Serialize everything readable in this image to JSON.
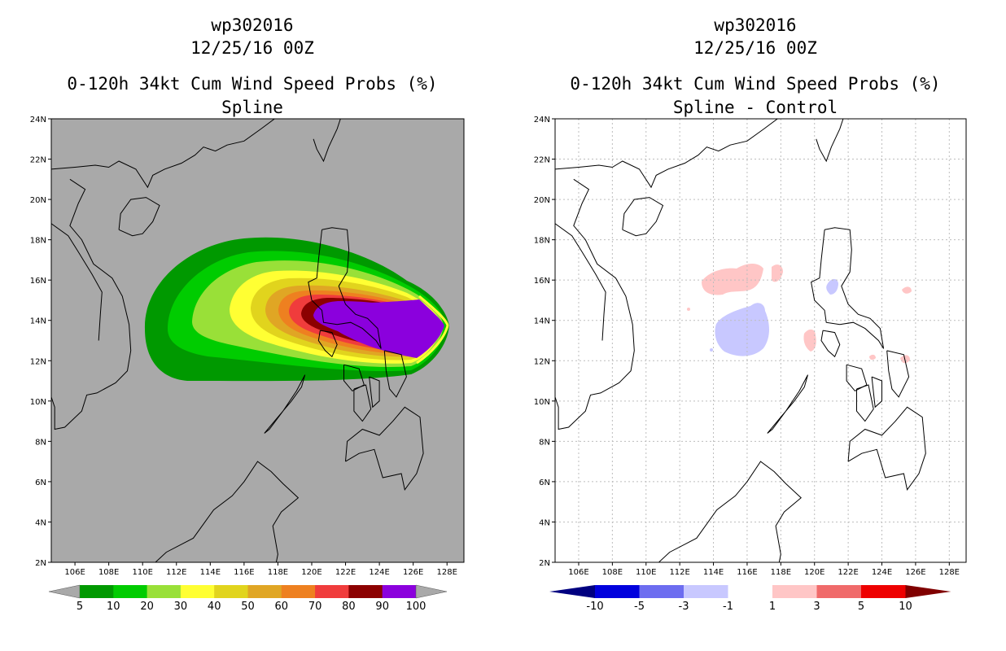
{
  "left_panel": {
    "storm_id": "wp302016",
    "datetime": "12/25/16 00Z",
    "product": "0-120h 34kt Cum Wind Speed Probs (%)",
    "method": "Spline",
    "background_color": "#a9a9a9",
    "colorbar": {
      "labels": [
        "5",
        "10",
        "20",
        "30",
        "40",
        "50",
        "60",
        "70",
        "80",
        "90",
        "100"
      ],
      "colors": [
        "#009900",
        "#00cc00",
        "#99e038",
        "#ffff33",
        "#e1d41d",
        "#e0a624",
        "#ee8020",
        "#f03c3c",
        "#8c0000",
        "#8b00dd"
      ],
      "extend_color": "#a9a9a9"
    }
  },
  "right_panel": {
    "storm_id": "wp302016",
    "datetime": "12/25/16 00Z",
    "product": "0-120h 34kt Cum Wind Speed Probs (%)",
    "method": "Spline - Control",
    "background_color": "#ffffff",
    "colorbar": {
      "labels": [
        "-10",
        "-5",
        "-3",
        "-1",
        "1",
        "3",
        "5",
        "10"
      ],
      "colors": [
        "#0000dd",
        "#6d6df0",
        "#c8c8ff",
        "#ffffff",
        "#ffc6c6",
        "#f06a6a",
        "#ee0000"
      ],
      "left_extend": "#000080",
      "right_extend": "#800000"
    }
  },
  "axes": {
    "lon_labels": [
      "106E",
      "108E",
      "110E",
      "112E",
      "114E",
      "116E",
      "118E",
      "120E",
      "122E",
      "124E",
      "126E",
      "128E"
    ],
    "lat_labels": [
      "2N",
      "4N",
      "6N",
      "8N",
      "10N",
      "12N",
      "14N",
      "16N",
      "18N",
      "20N",
      "22N",
      "24N"
    ],
    "lon_range": [
      104.6,
      129.0
    ],
    "lat_range": [
      2,
      24
    ]
  }
}
